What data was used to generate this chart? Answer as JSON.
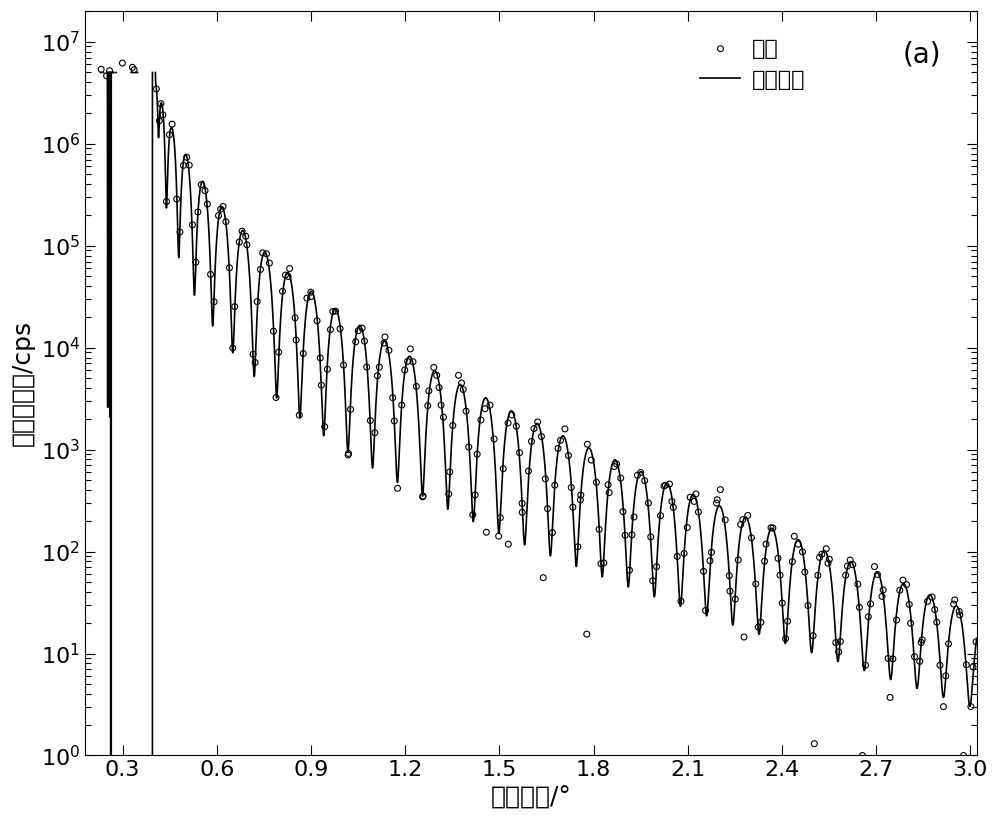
{
  "xlabel": "掠入射角/°",
  "ylabel": "反射光强度/cps",
  "label_exp": "实验",
  "label_theory": "理论计算",
  "panel_label": "(a)",
  "xlim": [
    0.18,
    3.02
  ],
  "ylim": [
    1.0,
    20000000.0
  ],
  "xticks": [
    0.3,
    0.6,
    0.9,
    1.2,
    1.5,
    1.8,
    2.1,
    2.4,
    2.7,
    3.0
  ],
  "background_color": "#ffffff",
  "line_color": "#000000",
  "scatter_color": "#000000",
  "figsize": [
    10.0,
    8.21
  ],
  "dpi": 100,
  "xlabel_fontsize": 18,
  "ylabel_fontsize": 18,
  "tick_fontsize": 16,
  "panel_fontsize": 20,
  "legend_fontsize": 16,
  "wavelength_nm": 0.154,
  "d_nm": 52.0,
  "delta1": 2.5e-05,
  "delta2": 7.5e-06,
  "beta1": 3e-07,
  "beta2": 1.7e-07,
  "sigma1": 0.35,
  "sigma2": 0.4,
  "scale_factor": 5000000.0,
  "noise_seed": 12,
  "noise_sigma": 0.12,
  "n_theory": 3000,
  "n_exp": 290
}
